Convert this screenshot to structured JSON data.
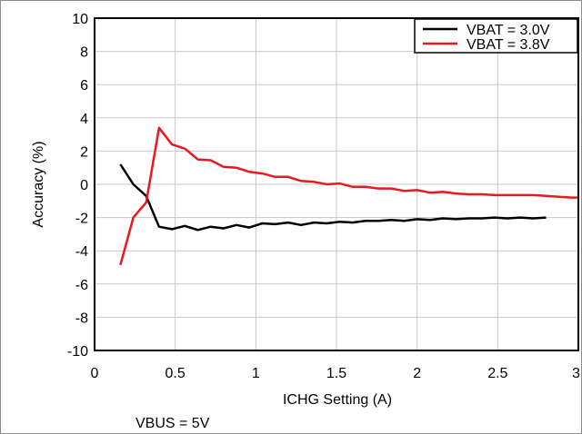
{
  "chart_data": {
    "type": "line",
    "title": "",
    "xlabel": "ICHG Setting (A)",
    "ylabel": "Accuracy (%)",
    "xlim": [
      0,
      3
    ],
    "ylim": [
      -10,
      10
    ],
    "xticks": [
      0,
      0.5,
      1,
      1.5,
      2,
      2.5,
      3
    ],
    "xtick_labels": [
      "0",
      "0.5",
      "1",
      "1.5",
      "2",
      "2.5",
      "3"
    ],
    "yticks": [
      -10,
      -8,
      -6,
      -4,
      -2,
      0,
      2,
      4,
      6,
      8,
      10
    ],
    "ytick_labels": [
      "-10",
      "-8",
      "-6",
      "-4",
      "-2",
      "0",
      "2",
      "4",
      "6",
      "8",
      "10"
    ],
    "grid": true,
    "legend_position": "top-right",
    "series": [
      {
        "name": "VBAT = 3.0V",
        "color": "#000000",
        "x": [
          0.16,
          0.24,
          0.32,
          0.4,
          0.48,
          0.56,
          0.64,
          0.72,
          0.8,
          0.88,
          0.96,
          1.04,
          1.12,
          1.2,
          1.28,
          1.36,
          1.44,
          1.52,
          1.6,
          1.68,
          1.76,
          1.84,
          1.92,
          2.0,
          2.08,
          2.16,
          2.24,
          2.32,
          2.4,
          2.48,
          2.56,
          2.64,
          2.72,
          2.8
        ],
        "values": [
          1.2,
          0.0,
          -0.7,
          -2.55,
          -2.7,
          -2.5,
          -2.75,
          -2.55,
          -2.65,
          -2.45,
          -2.6,
          -2.35,
          -2.4,
          -2.3,
          -2.45,
          -2.3,
          -2.35,
          -2.25,
          -2.3,
          -2.2,
          -2.2,
          -2.15,
          -2.2,
          -2.1,
          -2.15,
          -2.05,
          -2.1,
          -2.05,
          -2.05,
          -2.0,
          -2.05,
          -2.0,
          -2.05,
          -2.0
        ]
      },
      {
        "name": "VBAT = 3.8V",
        "color": "#e8191e",
        "x": [
          0.16,
          0.24,
          0.32,
          0.4,
          0.48,
          0.56,
          0.64,
          0.72,
          0.8,
          0.88,
          0.96,
          1.04,
          1.12,
          1.2,
          1.28,
          1.36,
          1.44,
          1.52,
          1.6,
          1.68,
          1.76,
          1.84,
          1.92,
          2.0,
          2.08,
          2.16,
          2.24,
          2.32,
          2.4,
          2.48,
          2.56,
          2.64,
          2.72,
          2.8,
          2.88,
          2.96,
          3.0
        ],
        "values": [
          -4.85,
          -2.0,
          -1.1,
          3.4,
          2.4,
          2.15,
          1.5,
          1.45,
          1.05,
          1.0,
          0.75,
          0.65,
          0.45,
          0.45,
          0.2,
          0.15,
          0.0,
          0.05,
          -0.15,
          -0.15,
          -0.25,
          -0.25,
          -0.4,
          -0.35,
          -0.5,
          -0.45,
          -0.55,
          -0.6,
          -0.6,
          -0.65,
          -0.65,
          -0.65,
          -0.65,
          -0.7,
          -0.75,
          -0.8,
          -0.8
        ]
      }
    ],
    "annotations": [
      "VBUS = 5V"
    ]
  }
}
